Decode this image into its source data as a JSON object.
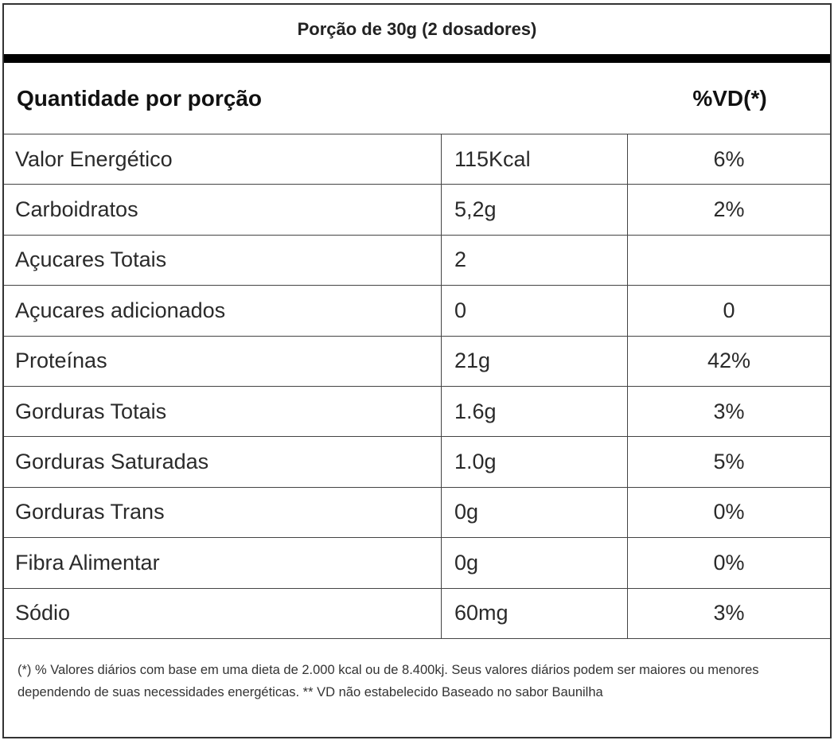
{
  "serving": "Porção de 30g (2 dosadores)",
  "header": {
    "quantity_label": "Quantidade por porção",
    "dv_label": "%VD(*)"
  },
  "rows": [
    {
      "name": "Valor Energético",
      "amount": "115Kcal",
      "dv": "6%"
    },
    {
      "name": "Carboidratos",
      "amount": "5,2g",
      "dv": "2%"
    },
    {
      "name": "Açucares Totais",
      "amount": "2",
      "dv": ""
    },
    {
      "name": "Açucares adicionados",
      "amount": "0",
      "dv": "0"
    },
    {
      "name": "Proteínas",
      "amount": "21g",
      "dv": "42%"
    },
    {
      "name": "Gorduras Totais",
      "amount": "1.6g",
      "dv": "3%"
    },
    {
      "name": "Gorduras Saturadas",
      "amount": "1.0g",
      "dv": "5%"
    },
    {
      "name": "Gorduras Trans",
      "amount": "0g",
      "dv": "0%"
    },
    {
      "name": "Fibra Alimentar",
      "amount": "0g",
      "dv": "0%"
    },
    {
      "name": "Sódio",
      "amount": "60mg",
      "dv": "3%"
    }
  ],
  "footnote": "(*) % Valores diários com base em uma dieta de 2.000 kcal ou de 8.400kj. Seus valores diários podem ser maiores ou menores dependendo de suas necessidades energéticas. ** VD não estabelecido Baseado no sabor Baunilha"
}
